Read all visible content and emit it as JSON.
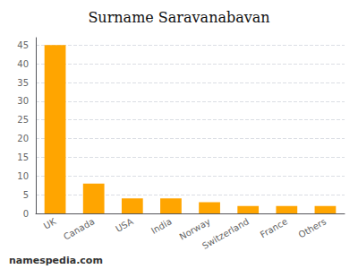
{
  "chart_data": {
    "type": "bar",
    "title": "Surname Saravanabavan",
    "categories": [
      "UK",
      "Canada",
      "USA",
      "India",
      "Norway",
      "Switzerland",
      "France",
      "Others"
    ],
    "values": [
      45,
      8,
      4,
      4,
      3,
      2,
      2,
      2
    ],
    "color": "#FFA500",
    "ylim": [
      0,
      47
    ],
    "yticks": [
      0,
      5,
      10,
      15,
      20,
      25,
      30,
      35,
      40,
      45
    ],
    "grid": true,
    "annotation": "namespedia.com"
  }
}
